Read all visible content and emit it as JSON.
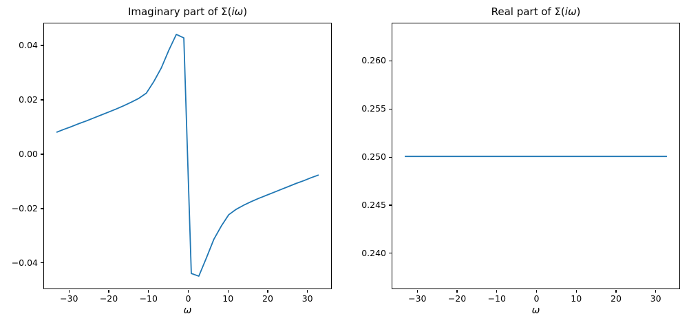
{
  "figure": {
    "background": "#ffffff",
    "line_color": "#1f77b4",
    "axis_color": "#000000"
  },
  "chart_data": [
    {
      "type": "line",
      "title": "Imaginary part of Σ(iω)",
      "title_prefix": "Imaginary part of Σ(",
      "title_math": "iω",
      "title_suffix": ")",
      "xlabel": "ω",
      "grid": false,
      "legend": "none",
      "xlim": [
        -36.29,
        36.29
      ],
      "ylim": [
        -0.0499,
        0.0481
      ],
      "xtick_values": [
        -30,
        -20,
        -10,
        0,
        10,
        20,
        30
      ],
      "xtick_labels": [
        "−30",
        "−20",
        "−10",
        "0",
        "10",
        "20",
        "30"
      ],
      "ytick_values": [
        0.04,
        0.02,
        0.0,
        -0.02,
        -0.04
      ],
      "ytick_labels": [
        "0.04",
        "0.02",
        "0.00",
        "−0.02",
        "−0.04"
      ],
      "x": [
        -32.99,
        -31.1,
        -29.22,
        -27.33,
        -25.45,
        -23.56,
        -21.68,
        -19.79,
        -17.91,
        -16.02,
        -14.14,
        -12.25,
        -10.37,
        -8.48,
        -6.6,
        -4.71,
        -2.83,
        -0.94,
        0.94,
        2.83,
        4.71,
        6.6,
        8.48,
        10.37,
        12.25,
        14.14,
        16.02,
        17.91,
        19.79,
        21.68,
        23.56,
        25.45,
        27.33,
        29.22,
        31.1,
        32.99
      ],
      "y": [
        0.0078,
        0.0089,
        0.0099,
        0.011,
        0.012,
        0.0131,
        0.0142,
        0.0153,
        0.0164,
        0.0176,
        0.0189,
        0.0203,
        0.0222,
        0.0265,
        0.0315,
        0.038,
        0.0438,
        0.0425,
        -0.0441,
        -0.0451,
        -0.0385,
        -0.0316,
        -0.0267,
        -0.0225,
        -0.0205,
        -0.019,
        -0.0177,
        -0.0165,
        -0.0154,
        -0.0143,
        -0.0132,
        -0.0121,
        -0.011,
        -0.01,
        -0.0089,
        -0.0079
      ]
    },
    {
      "type": "line",
      "title": "Real part of Σ(iω)",
      "title_prefix": "Real part of Σ(",
      "title_math": "iω",
      "title_suffix": ")",
      "xlabel": "ω",
      "grid": false,
      "legend": "none",
      "xlim": [
        -36.29,
        36.29
      ],
      "ylim": [
        0.2362,
        0.2639
      ],
      "xtick_values": [
        -30,
        -20,
        -10,
        0,
        10,
        20,
        30
      ],
      "xtick_labels": [
        "−30",
        "−20",
        "−10",
        "0",
        "10",
        "20",
        "30"
      ],
      "ytick_values": [
        0.26,
        0.255,
        0.25,
        0.245,
        0.24
      ],
      "ytick_labels": [
        "0.260",
        "0.255",
        "0.250",
        "0.245",
        "0.240"
      ],
      "x": [
        -32.99,
        -31.1,
        -29.22,
        -27.33,
        -25.45,
        -23.56,
        -21.68,
        -19.79,
        -17.91,
        -16.02,
        -14.14,
        -12.25,
        -10.37,
        -8.48,
        -6.6,
        -4.71,
        -2.83,
        -0.94,
        0.94,
        2.83,
        4.71,
        6.6,
        8.48,
        10.37,
        12.25,
        14.14,
        16.02,
        17.91,
        19.79,
        21.68,
        23.56,
        25.45,
        27.33,
        29.22,
        31.1,
        32.99
      ],
      "y_constant": 0.25
    }
  ]
}
